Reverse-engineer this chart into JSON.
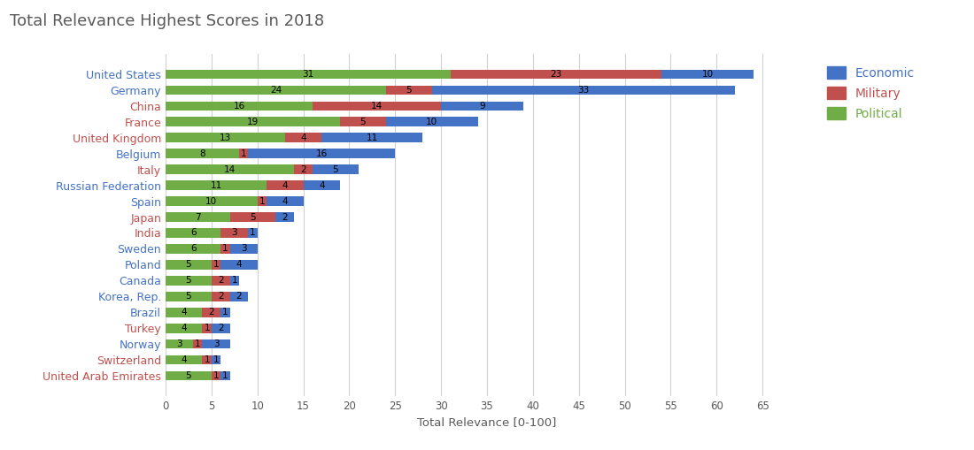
{
  "title": "Total Relevance Highest Scores in 2018",
  "xlabel": "Total Relevance [0-100]",
  "countries": [
    "United States",
    "Germany",
    "China",
    "France",
    "United Kingdom",
    "Belgium",
    "Italy",
    "Russian Federation",
    "Spain",
    "Japan",
    "India",
    "Sweden",
    "Poland",
    "Canada",
    "Korea, Rep.",
    "Brazil",
    "Turkey",
    "Norway",
    "Switzerland",
    "United Arab Emirates"
  ],
  "political": [
    31,
    24,
    16,
    19,
    13,
    8,
    14,
    11,
    10,
    7,
    6,
    6,
    5,
    5,
    5,
    4,
    4,
    3,
    4,
    5
  ],
  "military": [
    23,
    5,
    14,
    5,
    4,
    1,
    2,
    4,
    1,
    5,
    3,
    1,
    1,
    2,
    2,
    2,
    1,
    1,
    1,
    1
  ],
  "economic": [
    10,
    33,
    9,
    10,
    11,
    16,
    5,
    4,
    4,
    2,
    1,
    3,
    4,
    1,
    2,
    1,
    2,
    3,
    1,
    1
  ],
  "color_economic": "#4472C4",
  "color_military": "#C0504D",
  "color_political": "#70AD47",
  "title_color": "#595959",
  "label_color_steel": "#4472C4",
  "label_color_red": "#C0504D",
  "steel_countries": [
    "United States",
    "Germany",
    "Belgium",
    "Russian Federation",
    "Spain",
    "Sweden",
    "Poland",
    "Canada",
    "Korea, Rep.",
    "Brazil",
    "Norway"
  ],
  "red_countries": [
    "China",
    "France",
    "United Kingdom",
    "Italy",
    "Japan",
    "India",
    "Turkey",
    "Switzerland",
    "United Arab Emirates"
  ],
  "xlim": [
    0,
    70
  ],
  "xticks": [
    0,
    5,
    10,
    15,
    20,
    25,
    30,
    35,
    40,
    45,
    50,
    55,
    60,
    65
  ]
}
